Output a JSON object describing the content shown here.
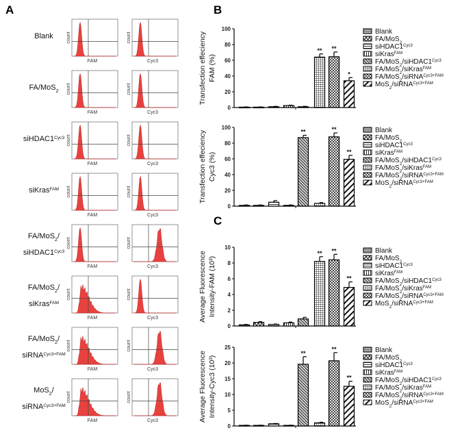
{
  "panels": {
    "a": "A",
    "b": "B",
    "c": "C"
  },
  "panel_a": {
    "count_label": "count",
    "columns": [
      "FAM",
      "Cyc3"
    ],
    "hist_color": "#e8423f",
    "rows": [
      {
        "label": [
          [
            {
              "t": "Blank"
            }
          ]
        ],
        "shifted": [
          false,
          false
        ]
      },
      {
        "label": [
          [
            {
              "t": "FA/MoS"
            },
            {
              "sub": "2"
            }
          ]
        ],
        "shifted": [
          false,
          false
        ]
      },
      {
        "label": [
          [
            {
              "t": "siHDAC1"
            },
            {
              "sup": "Cyc3"
            }
          ]
        ],
        "shifted": [
          false,
          false
        ]
      },
      {
        "label": [
          [
            {
              "t": "siKras"
            },
            {
              "sup": "FAM"
            }
          ]
        ],
        "shifted": [
          false,
          false
        ]
      },
      {
        "label": [
          [
            {
              "t": "FA/MoS"
            },
            {
              "sub": "2"
            },
            {
              "t": "/"
            }
          ],
          [
            {
              "t": "siHDAC1"
            },
            {
              "sup": "Cyc3"
            }
          ]
        ],
        "shifted": [
          false,
          true
        ]
      },
      {
        "label": [
          [
            {
              "t": "FA/MoS"
            },
            {
              "sub": "2"
            },
            {
              "t": "/"
            }
          ],
          [
            {
              "t": "siKras"
            },
            {
              "sup": "FAM"
            }
          ]
        ],
        "shifted": [
          true,
          false
        ]
      },
      {
        "label": [
          [
            {
              "t": "FA/MoS"
            },
            {
              "sub": "2"
            },
            {
              "t": "/"
            }
          ],
          [
            {
              "t": "siRNA"
            },
            {
              "sup": "Cyc3+FAM"
            }
          ]
        ],
        "shifted": [
          true,
          true
        ]
      },
      {
        "label": [
          [
            {
              "t": "MoS"
            },
            {
              "sub": "2"
            },
            {
              "t": "/"
            }
          ],
          [
            {
              "t": "siRNA"
            },
            {
              "sup": "Cyc3+FAM"
            }
          ]
        ],
        "shifted": [
          true,
          true
        ]
      }
    ]
  },
  "legend": [
    {
      "pattern": "dots-dense",
      "label": [
        {
          "t": "Blank"
        }
      ]
    },
    {
      "pattern": "crosshatch",
      "label": [
        {
          "t": "FA/MoS"
        },
        {
          "sub": "2"
        }
      ]
    },
    {
      "pattern": "horizontal",
      "label": [
        {
          "t": "siHDAC1"
        },
        {
          "sup": "Cyc3"
        }
      ]
    },
    {
      "pattern": "vertical",
      "label": [
        {
          "t": "siKras"
        },
        {
          "sup": "FAM"
        }
      ]
    },
    {
      "pattern": "diagonal-dense",
      "label": [
        {
          "t": "FA/MoS"
        },
        {
          "sub": "2"
        },
        {
          "t": "/siHDAC1"
        },
        {
          "sup": "Cyc3"
        }
      ]
    },
    {
      "pattern": "grid",
      "label": [
        {
          "t": "FA/MoS"
        },
        {
          "sub": "2"
        },
        {
          "t": "/siKras"
        },
        {
          "sup": "FAM"
        }
      ]
    },
    {
      "pattern": "checker",
      "label": [
        {
          "t": "FA/MoS"
        },
        {
          "sub": "2"
        },
        {
          "t": "/siRNA"
        },
        {
          "sup": "Cyc3+FAM"
        }
      ]
    },
    {
      "pattern": "diagonal-wide",
      "label": [
        {
          "t": "MoS"
        },
        {
          "sub": "2"
        },
        {
          "t": "/siRNA"
        },
        {
          "sup": "Cyc3+FAM"
        }
      ]
    }
  ],
  "chart_data": [
    {
      "type": "bar",
      "panel": "B",
      "ylabel": [
        "Transfection effeciency",
        "FAM (%)"
      ],
      "ylim": [
        0,
        100
      ],
      "yticks": [
        0,
        20,
        40,
        60,
        80,
        100
      ],
      "values": [
        0.5,
        0.5,
        1,
        2.5,
        1,
        64,
        64.5,
        34
      ],
      "errors": [
        0.3,
        0.3,
        0.5,
        0.5,
        0.5,
        4,
        6,
        4
      ],
      "significance": [
        "",
        "",
        "",
        "",
        "",
        "**",
        "**",
        "*"
      ]
    },
    {
      "type": "bar",
      "panel": "B",
      "ylabel": [
        "Transfection effeciency",
        "Cyc3 (%)"
      ],
      "ylim": [
        0,
        100
      ],
      "yticks": [
        0,
        20,
        40,
        60,
        80,
        100
      ],
      "values": [
        1,
        1,
        5,
        1,
        87,
        3.5,
        88,
        59.5
      ],
      "errors": [
        0.5,
        0.5,
        2,
        0.5,
        3,
        1,
        5,
        5
      ],
      "significance": [
        "",
        "",
        "",
        "",
        "**",
        "",
        "**",
        "**"
      ]
    },
    {
      "type": "bar",
      "panel": "C",
      "ylabel": [
        "Average Fluorescence",
        "Intensity-FAM (10³)"
      ],
      "ylim": [
        0,
        10
      ],
      "yticks": [
        0,
        2,
        4,
        6,
        8,
        10
      ],
      "values": [
        0.15,
        0.45,
        0.2,
        0.4,
        0.9,
        8.2,
        8.4,
        4.9
      ],
      "errors": [
        0.05,
        0.1,
        0.05,
        0.1,
        0.2,
        0.6,
        0.7,
        0.7
      ],
      "significance": [
        "",
        "",
        "",
        "",
        "",
        "**",
        "**",
        "**"
      ]
    },
    {
      "type": "bar",
      "panel": "C",
      "ylabel": [
        "Average Fluorescence",
        "Intensity-Cyc3 (10³)"
      ],
      "ylim": [
        0,
        25
      ],
      "yticks": [
        0,
        5,
        10,
        15,
        20,
        25
      ],
      "values": [
        0.2,
        0.2,
        0.7,
        0.2,
        19.6,
        1,
        20.7,
        12.6
      ],
      "errors": [
        0.05,
        0.05,
        0.1,
        0.05,
        2.4,
        0.2,
        2.6,
        1.6
      ],
      "significance": [
        "",
        "",
        "",
        "",
        "**",
        "",
        "**",
        "**"
      ]
    }
  ]
}
